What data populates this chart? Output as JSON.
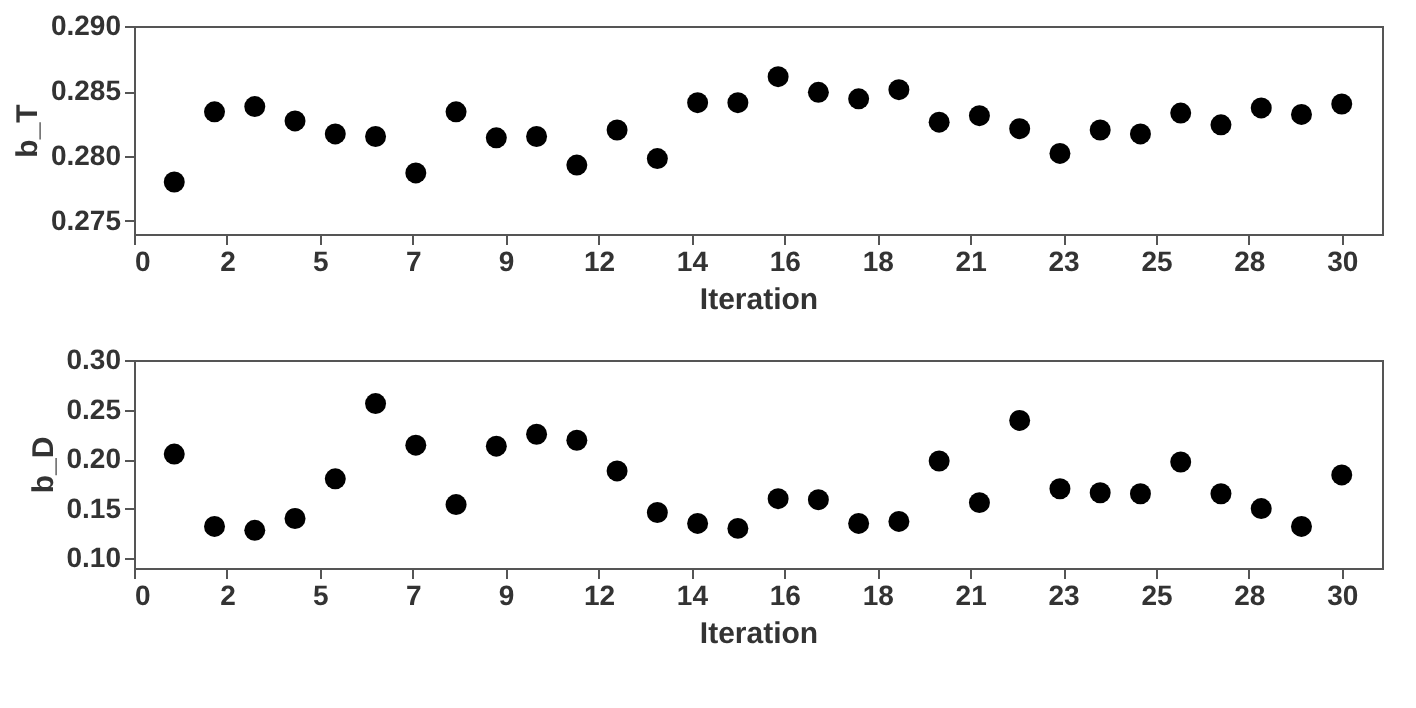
{
  "chart_data": [
    {
      "type": "scatter",
      "xlabel": "Iteration",
      "ylabel": "b_T",
      "x": [
        1,
        2,
        3,
        4,
        5,
        6,
        7,
        8,
        9,
        10,
        11,
        12,
        13,
        14,
        15,
        16,
        17,
        18,
        19,
        20,
        21,
        22,
        23,
        24,
        25,
        26,
        27,
        28,
        29,
        30
      ],
      "series": [
        {
          "color": "#000000",
          "values": [
            0.278,
            0.2834,
            0.2838,
            0.2827,
            0.2817,
            0.2815,
            0.2787,
            0.2834,
            0.2814,
            0.2815,
            0.2793,
            0.282,
            0.2798,
            0.2841,
            0.2841,
            0.2861,
            0.2849,
            0.2844,
            0.2851,
            0.2826,
            0.2831,
            0.2821,
            0.2802,
            0.282,
            0.2817,
            0.2833,
            0.2824,
            0.2837,
            0.2832,
            0.284
          ]
        }
      ],
      "xlim": [
        0,
        31
      ],
      "ylim": [
        0.274,
        0.29
      ],
      "yticks": [
        {
          "value": 0.275,
          "label": "0.275"
        },
        {
          "value": 0.28,
          "label": "0.280"
        },
        {
          "value": 0.285,
          "label": "0.285"
        },
        {
          "value": 0.29,
          "label": "0.290"
        }
      ],
      "xticks": [
        {
          "value": 0,
          "label": "0"
        },
        {
          "value": 2.308,
          "label": "2"
        },
        {
          "value": 4.615,
          "label": "5"
        },
        {
          "value": 6.923,
          "label": "7"
        },
        {
          "value": 9.231,
          "label": "9"
        },
        {
          "value": 11.538,
          "label": "12"
        },
        {
          "value": 13.846,
          "label": "14"
        },
        {
          "value": 16.154,
          "label": "16"
        },
        {
          "value": 18.462,
          "label": "18"
        },
        {
          "value": 20.769,
          "label": "21"
        },
        {
          "value": 23.077,
          "label": "23"
        },
        {
          "value": 25.385,
          "label": "25"
        },
        {
          "value": 27.692,
          "label": "28"
        },
        30
      ],
      "marker": "circle",
      "grid": false,
      "legend": false
    },
    {
      "type": "scatter",
      "xlabel": "Iteration",
      "ylabel": "b_D",
      "x": [
        1,
        2,
        3,
        4,
        5,
        6,
        7,
        8,
        9,
        10,
        11,
        12,
        13,
        14,
        15,
        16,
        17,
        18,
        19,
        20,
        21,
        22,
        23,
        24,
        25,
        26,
        27,
        28,
        29,
        30
      ],
      "series": [
        {
          "color": "#000000",
          "values": [
            0.205,
            0.132,
            0.128,
            0.14,
            0.18,
            0.256,
            0.214,
            0.154,
            0.213,
            0.225,
            0.219,
            0.188,
            0.146,
            0.135,
            0.13,
            0.16,
            0.159,
            0.135,
            0.137,
            0.198,
            0.156,
            0.239,
            0.17,
            0.166,
            0.165,
            0.197,
            0.165,
            0.15,
            0.132,
            0.184
          ]
        }
      ],
      "xlim": [
        0,
        31
      ],
      "ylim": [
        0.09,
        0.3
      ],
      "yticks": [
        {
          "value": 0.1,
          "label": "0.10"
        },
        {
          "value": 0.15,
          "label": "0.15"
        },
        {
          "value": 0.2,
          "label": "0.20"
        },
        {
          "value": 0.25,
          "label": "0.25"
        },
        {
          "value": 0.3,
          "label": "0.30"
        }
      ],
      "xticks": [
        {
          "value": 0,
          "label": "0"
        },
        {
          "value": 2.308,
          "label": "2"
        },
        {
          "value": 4.615,
          "label": "5"
        },
        {
          "value": 6.923,
          "label": "7"
        },
        {
          "value": 9.231,
          "label": "9"
        },
        {
          "value": 11.538,
          "label": "12"
        },
        {
          "value": 13.846,
          "label": "14"
        },
        {
          "value": 16.154,
          "label": "16"
        },
        {
          "value": 18.462,
          "label": "18"
        },
        {
          "value": 20.769,
          "label": "21"
        },
        {
          "value": 23.077,
          "label": "23"
        },
        {
          "value": 25.385,
          "label": "25"
        },
        {
          "value": 27.692,
          "label": "28"
        },
        30
      ],
      "marker": "circle",
      "grid": false,
      "legend": false
    }
  ]
}
